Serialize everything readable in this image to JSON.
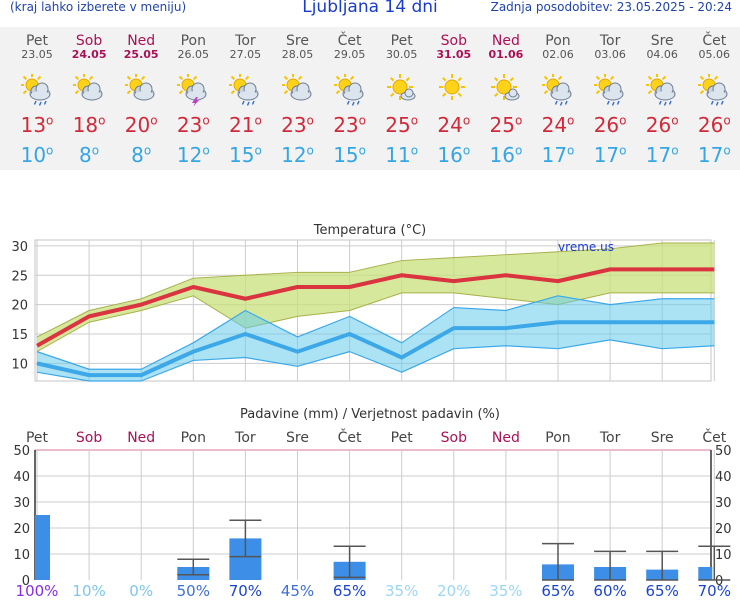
{
  "header": {
    "menu_hint": "(kraj lahko izberete v meniju)",
    "title": "Ljubljana 14 dni",
    "updated": "Zadnja posodobitev: 23.05.2025 - 20:24"
  },
  "days": [
    {
      "name": "Pet",
      "date": "23.05",
      "weekend": false,
      "icon": "sun-cloud-rain-icon",
      "max": "13",
      "min": "10",
      "prob": "100%"
    },
    {
      "name": "Sob",
      "date": "24.05",
      "weekend": true,
      "icon": "sun-cloud-icon",
      "max": "18",
      "min": "8",
      "prob": "10%"
    },
    {
      "name": "Ned",
      "date": "25.05",
      "weekend": true,
      "icon": "sun-cloud-icon",
      "max": "20",
      "min": "8",
      "prob": "0%"
    },
    {
      "name": "Pon",
      "date": "26.05",
      "weekend": false,
      "icon": "sun-cloud-lightning-icon",
      "max": "23",
      "min": "12",
      "prob": "50%"
    },
    {
      "name": "Tor",
      "date": "27.05",
      "weekend": false,
      "icon": "sun-cloud-rain-icon",
      "max": "21",
      "min": "15",
      "prob": "70%"
    },
    {
      "name": "Sre",
      "date": "28.05",
      "weekend": false,
      "icon": "sun-cloud-icon",
      "max": "23",
      "min": "12",
      "prob": "45%"
    },
    {
      "name": "Čet",
      "date": "29.05",
      "weekend": false,
      "icon": "sun-cloud-rain-icon",
      "max": "23",
      "min": "15",
      "prob": "65%"
    },
    {
      "name": "Pet",
      "date": "30.05",
      "weekend": false,
      "icon": "sun-small-cloud-icon",
      "max": "25",
      "min": "11",
      "prob": "35%"
    },
    {
      "name": "Sob",
      "date": "31.05",
      "weekend": true,
      "icon": "sun-icon",
      "max": "24",
      "min": "16",
      "prob": "20%"
    },
    {
      "name": "Ned",
      "date": "01.06",
      "weekend": true,
      "icon": "sun-small-cloud-icon",
      "max": "25",
      "min": "16",
      "prob": "35%"
    },
    {
      "name": "Pon",
      "date": "02.06",
      "weekend": false,
      "icon": "sun-cloud-rain-icon",
      "max": "24",
      "min": "17",
      "prob": "65%"
    },
    {
      "name": "Tor",
      "date": "03.06",
      "weekend": false,
      "icon": "sun-cloud-rain-icon",
      "max": "26",
      "min": "17",
      "prob": "60%"
    },
    {
      "name": "Sre",
      "date": "04.06",
      "weekend": false,
      "icon": "sun-cloud-rain-icon",
      "max": "26",
      "min": "17",
      "prob": "65%"
    },
    {
      "name": "Čet",
      "date": "05.06",
      "weekend": false,
      "icon": "sun-cloud-rain-icon",
      "max": "26",
      "min": "17",
      "prob": "70%"
    }
  ],
  "temp_unit": "o",
  "chart_data": [
    {
      "type": "line",
      "title": "Temperatura (°C)",
      "watermark": "vreme.us",
      "ylim": [
        7,
        31
      ],
      "yticks": [
        10,
        15,
        20,
        25,
        30
      ],
      "grid": true,
      "series": [
        {
          "name": "max",
          "color": "#d9343f",
          "values": [
            13,
            18,
            20,
            23,
            21,
            23,
            23,
            25,
            24,
            25,
            24,
            26,
            26,
            26
          ]
        },
        {
          "name": "max_low",
          "color": "#b8c94a",
          "values": [
            12,
            17,
            19,
            21.5,
            16,
            18,
            19,
            22,
            22,
            21,
            20,
            22,
            22,
            22
          ]
        },
        {
          "name": "max_high",
          "color": "#b8c94a",
          "values": [
            14.5,
            19,
            21,
            24.5,
            25,
            25.5,
            25.5,
            27.5,
            28,
            28.5,
            29,
            29.5,
            30.5,
            30.5
          ]
        },
        {
          "name": "min",
          "color": "#3da8e8",
          "values": [
            10,
            8,
            8,
            12,
            15,
            12,
            15,
            11,
            16,
            16,
            17,
            17,
            17,
            17
          ]
        },
        {
          "name": "min_low",
          "color": "#3da8e8",
          "values": [
            8.5,
            7,
            7,
            10.5,
            11,
            9.5,
            12,
            8.5,
            12.5,
            13,
            12.5,
            14,
            12.5,
            13
          ]
        },
        {
          "name": "min_high",
          "color": "#3da8e8",
          "values": [
            12,
            9,
            9,
            13.5,
            19,
            14.5,
            18,
            13.5,
            19.5,
            19,
            21.5,
            20,
            21,
            21
          ]
        }
      ]
    },
    {
      "type": "bar",
      "title": "Padavine (mm) / Verjetnost padavin (%)",
      "ylim": [
        0,
        50
      ],
      "yticks": [
        0,
        10,
        20,
        30,
        40,
        50
      ],
      "values": [
        25,
        0,
        0,
        5,
        16,
        0,
        7,
        0,
        0,
        0,
        6,
        5,
        4,
        5
      ],
      "err_low": [
        null,
        null,
        null,
        2,
        9,
        null,
        1,
        null,
        null,
        null,
        0,
        0,
        0,
        0
      ],
      "err_high": [
        null,
        null,
        null,
        8,
        23,
        null,
        13,
        null,
        null,
        null,
        14,
        11,
        11,
        13
      ],
      "bar_color": "#3d8ee6"
    }
  ],
  "colors": {
    "grid": "#cccccc",
    "weekend": "#aa1155",
    "prob_scale": [
      "#8a2be2",
      "#7ec6f0",
      "#9cd6f5",
      "#3d6fd6",
      "#1a44cc"
    ]
  }
}
